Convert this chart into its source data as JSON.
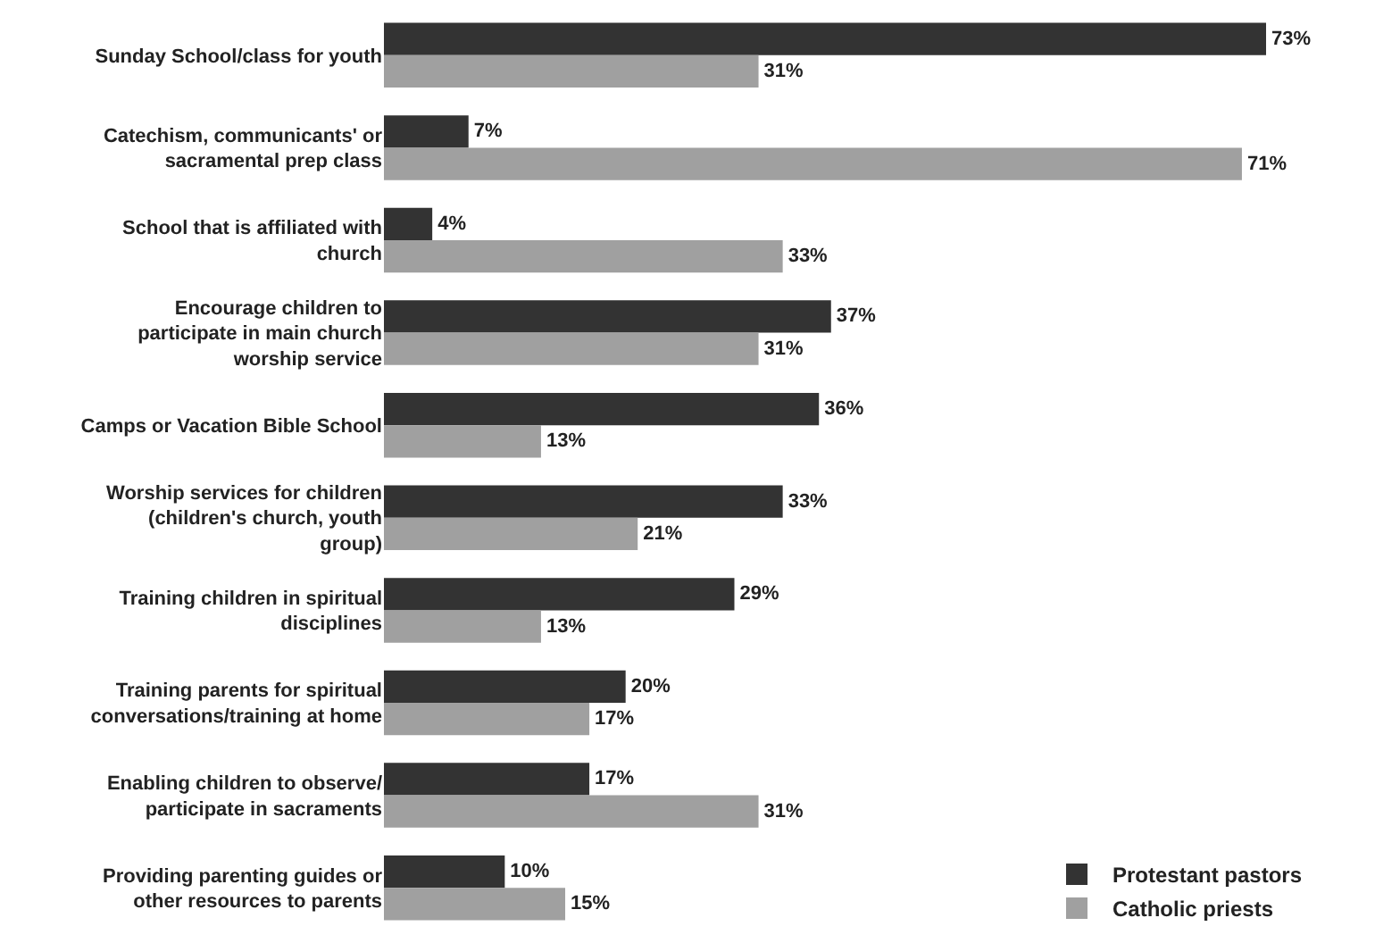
{
  "chart_data": {
    "type": "bar",
    "orientation": "horizontal",
    "categories": [
      "Sunday School/class for youth",
      "Catechism, communicants' or sacramental prep class",
      "School that is affiliated with church",
      "Encourage children to participate in main church worship service",
      "Camps or Vacation Bible School",
      "Worship services for children (children's church, youth group)",
      "Training children in spiritual disciplines",
      "Training parents for spiritual conversations/training at home",
      "Enabling children to observe/ participate in sacraments",
      "Providing parenting guides or other resources to parents"
    ],
    "series": [
      {
        "name": "Protestant pastors",
        "color": "#333333",
        "values": [
          73,
          7,
          4,
          37,
          36,
          33,
          29,
          20,
          17,
          10
        ],
        "value_labels": [
          "73%",
          "7%",
          "4%",
          "37%",
          "36%",
          "33%",
          "29%",
          "20%",
          "17%",
          "10%"
        ]
      },
      {
        "name": "Catholic priests",
        "color": "#a0a0a0",
        "values": [
          31,
          71,
          33,
          31,
          13,
          21,
          13,
          17,
          31,
          15
        ],
        "value_labels": [
          "31%",
          "71%",
          "33%",
          "31%",
          "13%",
          "21%",
          "13%",
          "17%",
          "31%",
          "15%"
        ]
      }
    ],
    "tick_labels": "y",
    "legend": "bottom right"
  }
}
